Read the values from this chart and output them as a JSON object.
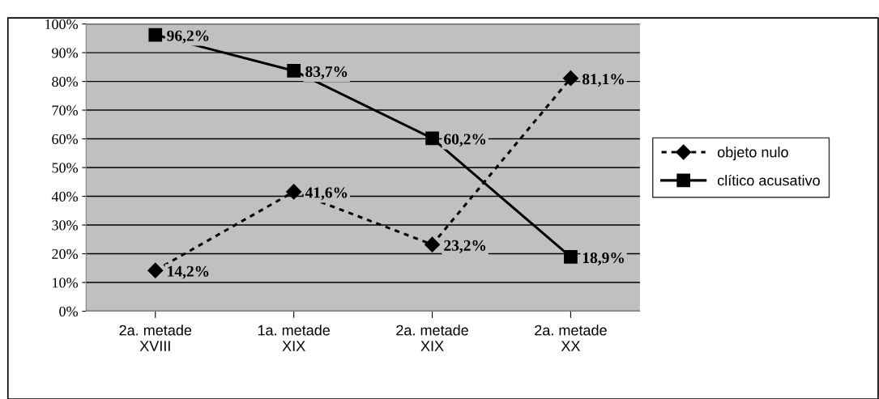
{
  "chart_data": {
    "type": "line",
    "categories": [
      "2a. metade\nXVIII",
      "1a. metade\nXIX",
      "2a. metade\nXIX",
      "2a. metade\nXX"
    ],
    "series": [
      {
        "name": "objeto nulo",
        "color": "#000000",
        "values": [
          14.2,
          41.6,
          23.2,
          81.1
        ],
        "marker": "diamond",
        "line_style": "dotted",
        "value_labels": [
          "14,2%",
          "41,6%",
          "23,2%",
          "81,1%"
        ]
      },
      {
        "name": "clítico acusativo",
        "color": "#000000",
        "values": [
          96.2,
          83.7,
          60.2,
          18.9
        ],
        "marker": "square",
        "line_style": "solid",
        "value_labels": [
          "96,2%",
          "83,7%",
          "60,2%",
          "18,9%"
        ]
      }
    ],
    "ylim": [
      0,
      100
    ],
    "yticks": [
      {
        "value": 0,
        "label": "0%"
      },
      {
        "value": 10,
        "label": "10%"
      },
      {
        "value": 20,
        "label": "20%"
      },
      {
        "value": 30,
        "label": "30%"
      },
      {
        "value": 40,
        "label": "40%"
      },
      {
        "value": 50,
        "label": "50%"
      },
      {
        "value": 60,
        "label": "60%"
      },
      {
        "value": 70,
        "label": "70%"
      },
      {
        "value": 80,
        "label": "80%"
      },
      {
        "value": 90,
        "label": "90%"
      },
      {
        "value": 100,
        "label": "100%"
      }
    ],
    "grid": "y",
    "legend": "right"
  }
}
